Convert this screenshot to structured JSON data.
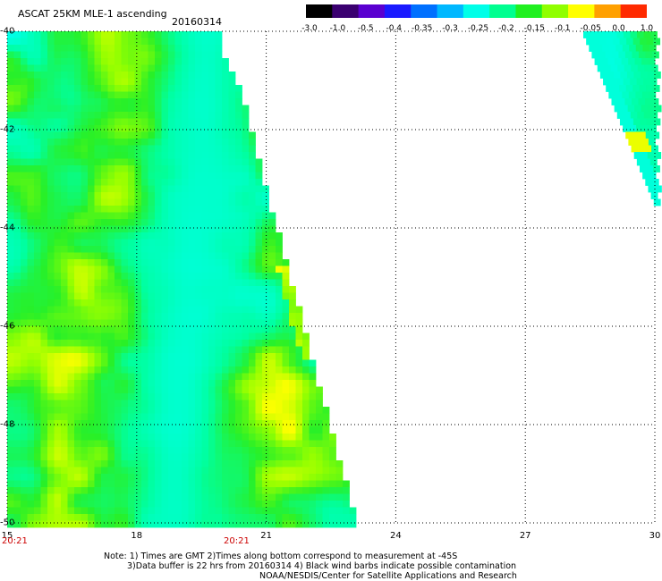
{
  "title": "ASCAT 25KM MLE-1 ascending",
  "date": "20160314",
  "colorbar": {
    "labels": [
      "-3.0",
      "-1.0",
      "-0.5",
      "-0.4",
      "-0.35",
      "-0.3",
      "-0.25",
      "-0.2",
      "-0.15",
      "-0.1",
      "-0.05",
      "0.0",
      "1.0"
    ],
    "colors": [
      "#000000",
      "#3a0070",
      "#5a00d0",
      "#1a1aff",
      "#0070ff",
      "#00b8ff",
      "#00ffe8",
      "#00ff90",
      "#20f020",
      "#90ff00",
      "#ffff00",
      "#ffa000",
      "#ff2a00"
    ]
  },
  "axes": {
    "x_ticks": [
      "15",
      "18",
      "21",
      "24",
      "27",
      "30"
    ],
    "y_ticks": [
      "-40",
      "-42",
      "-44",
      "-46",
      "-48",
      "-50"
    ],
    "time_labels": [
      "20:21",
      "20:21"
    ]
  },
  "map": {
    "lon_range": [
      15,
      30
    ],
    "lat_range": [
      -50,
      -40
    ],
    "background_color": "#ffffff",
    "grid": "dotted"
  },
  "notes": {
    "line1": "Note: 1) Times are GMT 2)Times along bottom correspond to measurement at -45S",
    "line2": "3)Data buffer is 22 hrs from 20160314 4) Black wind barbs indicate possible contamination",
    "line3": "NOAA/NESDIS/Center for Satellite Applications and Research"
  }
}
